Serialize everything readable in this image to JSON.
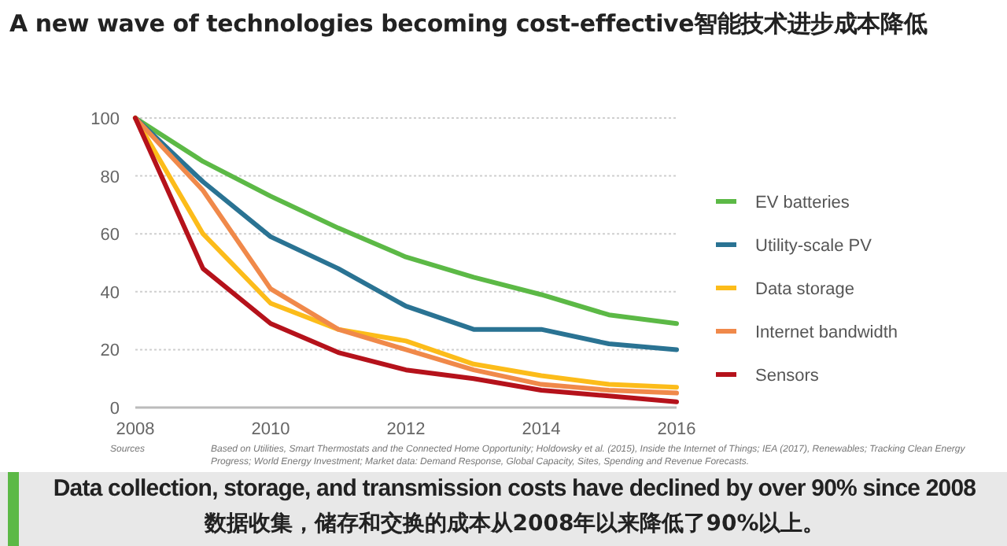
{
  "chart_data": {
    "type": "line",
    "title": "A new wave of technologies becoming cost-effective智能技术进步成本降低",
    "x": [
      2008,
      2009,
      2010,
      2011,
      2012,
      2013,
      2014,
      2015,
      2016
    ],
    "series": [
      {
        "name": "EV batteries",
        "color": "#5cb946",
        "values": [
          100,
          85,
          73,
          62,
          52,
          45,
          39,
          32,
          29
        ]
      },
      {
        "name": "Utility-scale PV",
        "color": "#2a7393",
        "values": [
          100,
          78,
          59,
          48,
          35,
          27,
          27,
          22,
          20
        ]
      },
      {
        "name": "Data storage",
        "color": "#fcbc1a",
        "values": [
          100,
          60,
          36,
          27,
          23,
          15,
          11,
          8,
          7
        ]
      },
      {
        "name": "Internet bandwidth",
        "color": "#f0894a",
        "values": [
          100,
          75,
          41,
          27,
          20,
          13,
          8,
          6,
          5
        ]
      },
      {
        "name": "Sensors",
        "color": "#b5121b",
        "values": [
          100,
          48,
          29,
          19,
          13,
          10,
          6,
          4,
          2
        ]
      }
    ],
    "xlim": [
      2008,
      2016
    ],
    "xticks": [
      2008,
      2010,
      2012,
      2014,
      2016
    ],
    "ylim": [
      0,
      100
    ],
    "yticks": [
      0,
      20,
      40,
      60,
      80,
      100
    ],
    "grid": "y",
    "legend": "right",
    "marker": "none",
    "line_style": "solid",
    "annotations": [
      "Sources",
      "Based on Utilities, Smart Thermostats and the Connected Home Opportunity; Holdowsky et al. (2015), Inside the Internet of Things; IEA (2017), Renewables; Tracking Clean Energy Progress; World Energy Investment; Market data: Demand Response, Global Capacity, Sites, Spending and Revenue Forecasts.",
      "Data collection, storage, and transmission costs have declined by over 90% since 2008",
      "数据收集，储存和交换的成本从2008年以来降低了90%以上。"
    ]
  }
}
